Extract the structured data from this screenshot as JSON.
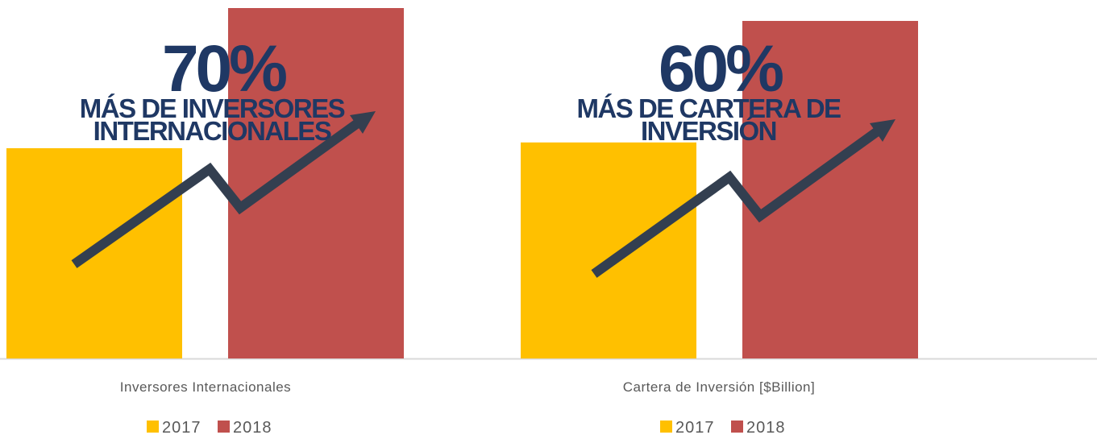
{
  "chart_data": [
    {
      "type": "bar",
      "categories": [
        "Inversores Internacionales"
      ],
      "series": [
        {
          "name": "2017",
          "color": "#ffc000",
          "values": [
            60
          ]
        },
        {
          "name": "2018",
          "color": "#c0504d",
          "values": [
            100
          ]
        }
      ],
      "ylim": [
        0,
        102.3
      ],
      "annotation": "70%",
      "annotation_lines": [
        "MÁS DE INVERSORES",
        "INTERNACIONALES"
      ]
    },
    {
      "type": "bar",
      "categories": [
        "Cartera de Inversión  [$Billion]"
      ],
      "series": [
        {
          "name": "2017",
          "color": "#ffc000",
          "values": [
            64
          ]
        },
        {
          "name": "2018",
          "color": "#c0504d",
          "values": [
            100
          ]
        }
      ],
      "ylim": [
        0,
        106.2
      ],
      "annotation": "60%",
      "annotation_lines": [
        "MÁS DE CARTERA DE",
        "INVERSIÓN"
      ]
    }
  ]
}
